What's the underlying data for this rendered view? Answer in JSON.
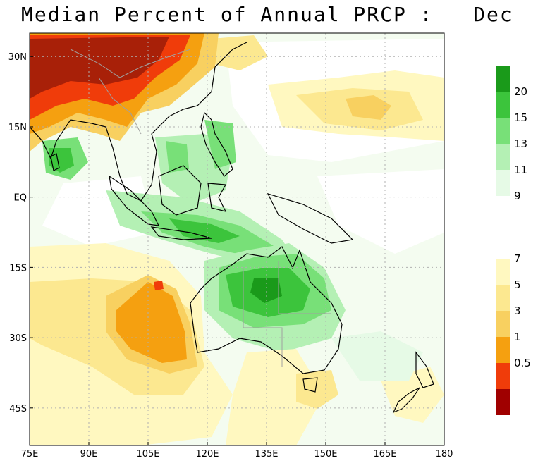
{
  "title": "Median Percent of Annual PRCP :   Dec",
  "map": {
    "lon_range": [
      75,
      180
    ],
    "lat_range": [
      -53,
      35
    ],
    "x_ticks": [
      "75E",
      "90E",
      "105E",
      "120E",
      "135E",
      "150E",
      "165E",
      "180"
    ],
    "y_ticks": [
      "30N",
      "15N",
      "EQ",
      "15S",
      "30S",
      "45S"
    ],
    "gridlines": "dotted"
  },
  "colorbar": {
    "wet_labels": [
      "20",
      "15",
      "13",
      "11",
      "9"
    ],
    "dry_labels": [
      "7",
      "5",
      "3",
      "1",
      "0.5"
    ],
    "wet_colors": [
      "#1a9a1a",
      "#3cc43c",
      "#78e078",
      "#b4f0b4",
      "#e6fae6",
      "#ffffff"
    ],
    "dry_colors": [
      "#fff8c0",
      "#fce890",
      "#f8d060",
      "#f5a010",
      "#f03c0a",
      "#a00000"
    ]
  },
  "colors": {
    "land_outline": "#000000",
    "border": "#a0a0a0"
  }
}
